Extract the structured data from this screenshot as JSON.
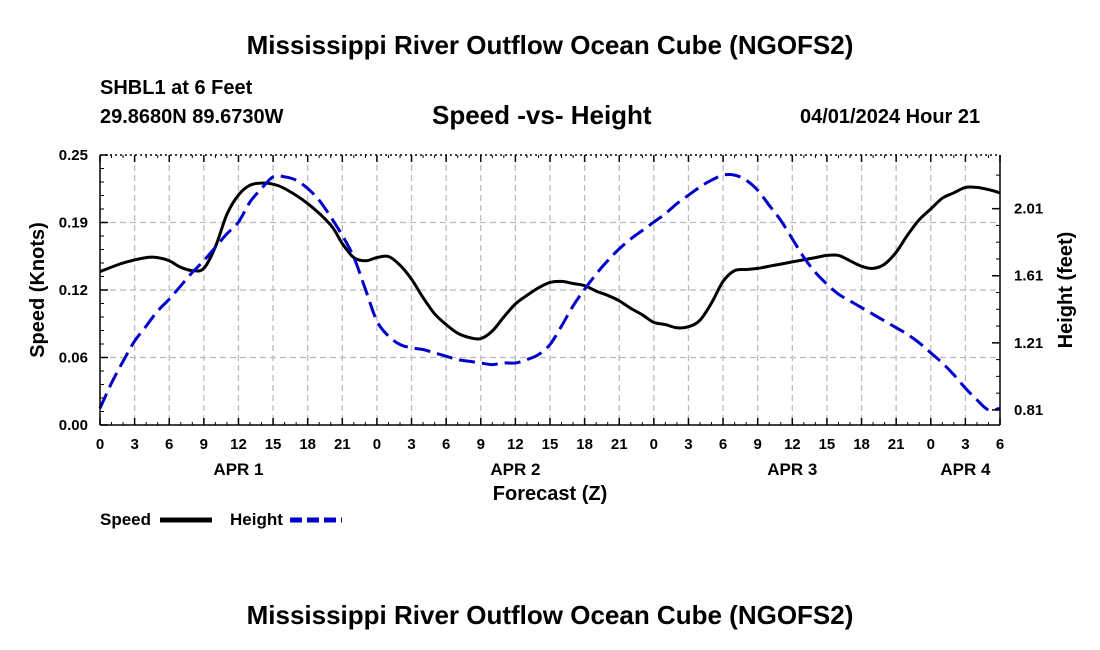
{
  "header": {
    "title": "Mississippi River Outflow Ocean Cube (NGOFS2)",
    "station": "SHBL1 at 6 Feet",
    "coords": "29.8680N  89.6730W",
    "subtitle": "Speed -vs- Height",
    "datetime": "04/01/2024 Hour 21"
  },
  "legend": {
    "speed_label": "Speed",
    "height_label": "Height"
  },
  "footer": {
    "title": "Mississippi River Outflow Ocean Cube (NGOFS2)"
  },
  "chart_data": {
    "type": "line",
    "xlabel": "Forecast (Z)",
    "ylabel": "Speed (Knots)",
    "y2label": "Height (feet)",
    "x_ticks": [
      "0",
      "3",
      "6",
      "9",
      "12",
      "15",
      "18",
      "21",
      "0",
      "3",
      "6",
      "9",
      "12",
      "15",
      "18",
      "21",
      "0",
      "3",
      "6",
      "9",
      "12",
      "15",
      "18",
      "21",
      "0",
      "3",
      "6"
    ],
    "day_labels": [
      {
        "label": "APR 1",
        "hour": 12
      },
      {
        "label": "APR 2",
        "hour": 36
      },
      {
        "label": "APR 3",
        "hour": 60
      },
      {
        "label": "APR 4",
        "hour": 75
      }
    ],
    "xlim": [
      0,
      78
    ],
    "ylim": [
      0,
      0.25
    ],
    "y_ticks": [
      "0.00",
      "0.06",
      "0.12",
      "0.19",
      "0.25"
    ],
    "y2lim": [
      0.72,
      2.33
    ],
    "y2_ticks": [
      "0.81",
      "1.21",
      "1.61",
      "2.01"
    ],
    "grid": true,
    "colors": {
      "speed": "#000000",
      "height": "#0000cc",
      "grid": "#bbbbbb"
    },
    "series": [
      {
        "name": "Speed",
        "axis": "left",
        "style": "solid",
        "x": [
          0,
          2,
          4,
          5,
          6,
          7,
          8,
          9,
          10,
          11,
          12,
          13,
          14,
          15,
          16,
          18,
          20,
          21,
          22,
          23,
          24,
          25,
          26,
          27,
          28,
          29,
          30,
          31,
          32,
          33,
          34,
          35,
          36,
          37,
          38,
          39,
          40,
          41,
          42,
          43,
          44,
          45,
          46,
          47,
          48,
          49,
          50,
          51,
          52,
          53,
          54,
          55,
          56,
          57,
          58,
          59,
          60,
          61,
          62,
          63,
          64,
          65,
          66,
          67,
          68,
          69,
          70,
          71,
          72,
          73,
          74,
          75,
          76,
          77,
          78
        ],
        "values": [
          0.142,
          0.15,
          0.155,
          0.155,
          0.152,
          0.146,
          0.143,
          0.145,
          0.165,
          0.195,
          0.213,
          0.222,
          0.224,
          0.223,
          0.219,
          0.205,
          0.185,
          0.168,
          0.155,
          0.152,
          0.155,
          0.156,
          0.148,
          0.135,
          0.118,
          0.103,
          0.093,
          0.085,
          0.081,
          0.08,
          0.087,
          0.1,
          0.112,
          0.12,
          0.127,
          0.132,
          0.133,
          0.131,
          0.129,
          0.124,
          0.12,
          0.115,
          0.108,
          0.102,
          0.095,
          0.093,
          0.09,
          0.091,
          0.097,
          0.113,
          0.133,
          0.143,
          0.144,
          0.145,
          0.147,
          0.149,
          0.151,
          0.153,
          0.155,
          0.157,
          0.157,
          0.152,
          0.147,
          0.145,
          0.149,
          0.16,
          0.176,
          0.19,
          0.2,
          0.21,
          0.215,
          0.22,
          0.22,
          0.218,
          0.215
        ]
      },
      {
        "name": "Height",
        "axis": "right",
        "style": "dashed",
        "x": [
          0,
          1,
          2,
          3,
          4,
          5,
          6,
          7,
          8,
          9,
          10,
          11,
          12,
          13,
          14,
          15,
          16,
          17,
          18,
          19,
          20,
          21,
          22,
          23,
          24,
          25,
          26,
          27,
          28,
          29,
          30,
          31,
          32,
          33,
          34,
          35,
          36,
          37,
          38,
          39,
          40,
          41,
          42,
          43,
          44,
          45,
          46,
          47,
          48,
          49,
          50,
          51,
          52,
          53,
          54,
          55,
          56,
          57,
          58,
          59,
          60,
          61,
          62,
          63,
          64,
          65,
          66,
          67,
          68,
          69,
          70,
          71,
          72,
          73,
          74,
          75,
          76,
          77,
          78
        ],
        "values": [
          0.82,
          0.97,
          1.1,
          1.22,
          1.31,
          1.4,
          1.47,
          1.55,
          1.63,
          1.7,
          1.78,
          1.86,
          1.93,
          2.05,
          2.13,
          2.2,
          2.2,
          2.18,
          2.13,
          2.06,
          1.96,
          1.85,
          1.72,
          1.53,
          1.34,
          1.25,
          1.2,
          1.18,
          1.17,
          1.15,
          1.13,
          1.11,
          1.1,
          1.09,
          1.08,
          1.09,
          1.09,
          1.11,
          1.14,
          1.2,
          1.31,
          1.43,
          1.53,
          1.62,
          1.7,
          1.77,
          1.83,
          1.88,
          1.93,
          1.98,
          2.04,
          2.09,
          2.14,
          2.18,
          2.21,
          2.21,
          2.18,
          2.12,
          2.03,
          1.94,
          1.83,
          1.72,
          1.63,
          1.56,
          1.5,
          1.46,
          1.42,
          1.38,
          1.34,
          1.3,
          1.26,
          1.21,
          1.15,
          1.09,
          1.02,
          0.94,
          0.87,
          0.81,
          0.82
        ]
      }
    ]
  }
}
